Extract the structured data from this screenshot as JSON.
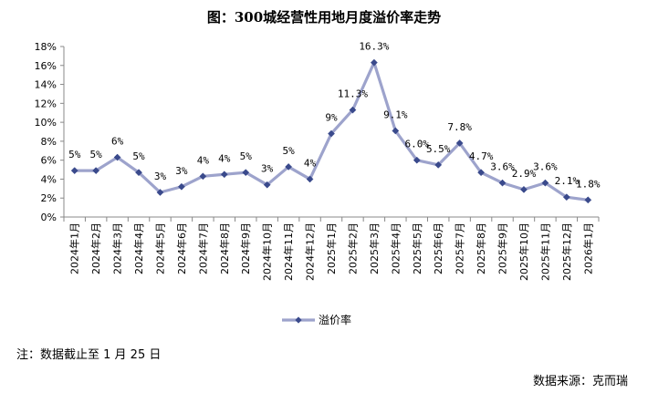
{
  "title": "图：300城经营性用地月度溢价率走势",
  "note": "注：数据截止至 1 月 25 日",
  "source": "数据来源：克而瑞",
  "chart_data": {
    "type": "line",
    "title": "图：300城经营性用地月度溢价率走势",
    "categories": [
      "2024年1月",
      "2024年2月",
      "2024年3月",
      "2024年4月",
      "2024年5月",
      "2024年6月",
      "2024年7月",
      "2024年8月",
      "2024年9月",
      "2024年10月",
      "2024年11月",
      "2024年12月",
      "2025年1月",
      "2025年2月",
      "2025年3月",
      "2025年4月",
      "2025年5月",
      "2025年6月",
      "2025年7月",
      "2025年8月",
      "2025年9月",
      "2025年10月",
      "2025年11月",
      "2025年12月",
      "2026年1月"
    ],
    "series": [
      {
        "name": "溢价率",
        "color": "#9da3cc",
        "marker_color": "#3a4a8c",
        "values": [
          4.9,
          4.9,
          6.3,
          4.7,
          2.6,
          3.2,
          4.3,
          4.5,
          4.7,
          3.4,
          5.3,
          4.0,
          8.8,
          11.3,
          16.3,
          9.1,
          6.0,
          5.5,
          7.8,
          4.7,
          3.6,
          2.9,
          3.6,
          2.1,
          1.8
        ],
        "labels": [
          "5%",
          "5%",
          "6%",
          "5%",
          "3%",
          "3%",
          "4%",
          "4%",
          "5%",
          "3%",
          "5%",
          "4%",
          "9%",
          "11.3%",
          "16.3%",
          "9.1%",
          "6.0%",
          "5.5%",
          "7.8%",
          "4.7%",
          "3.6%",
          "2.9%",
          "3.6%",
          "2.1%",
          "1.8%"
        ]
      }
    ],
    "y_ticks": [
      "0%",
      "2%",
      "4%",
      "6%",
      "8%",
      "10%",
      "12%",
      "14%",
      "16%",
      "18%"
    ],
    "ylim": [
      0,
      18
    ],
    "legend": "bottom-center",
    "grid": false
  }
}
